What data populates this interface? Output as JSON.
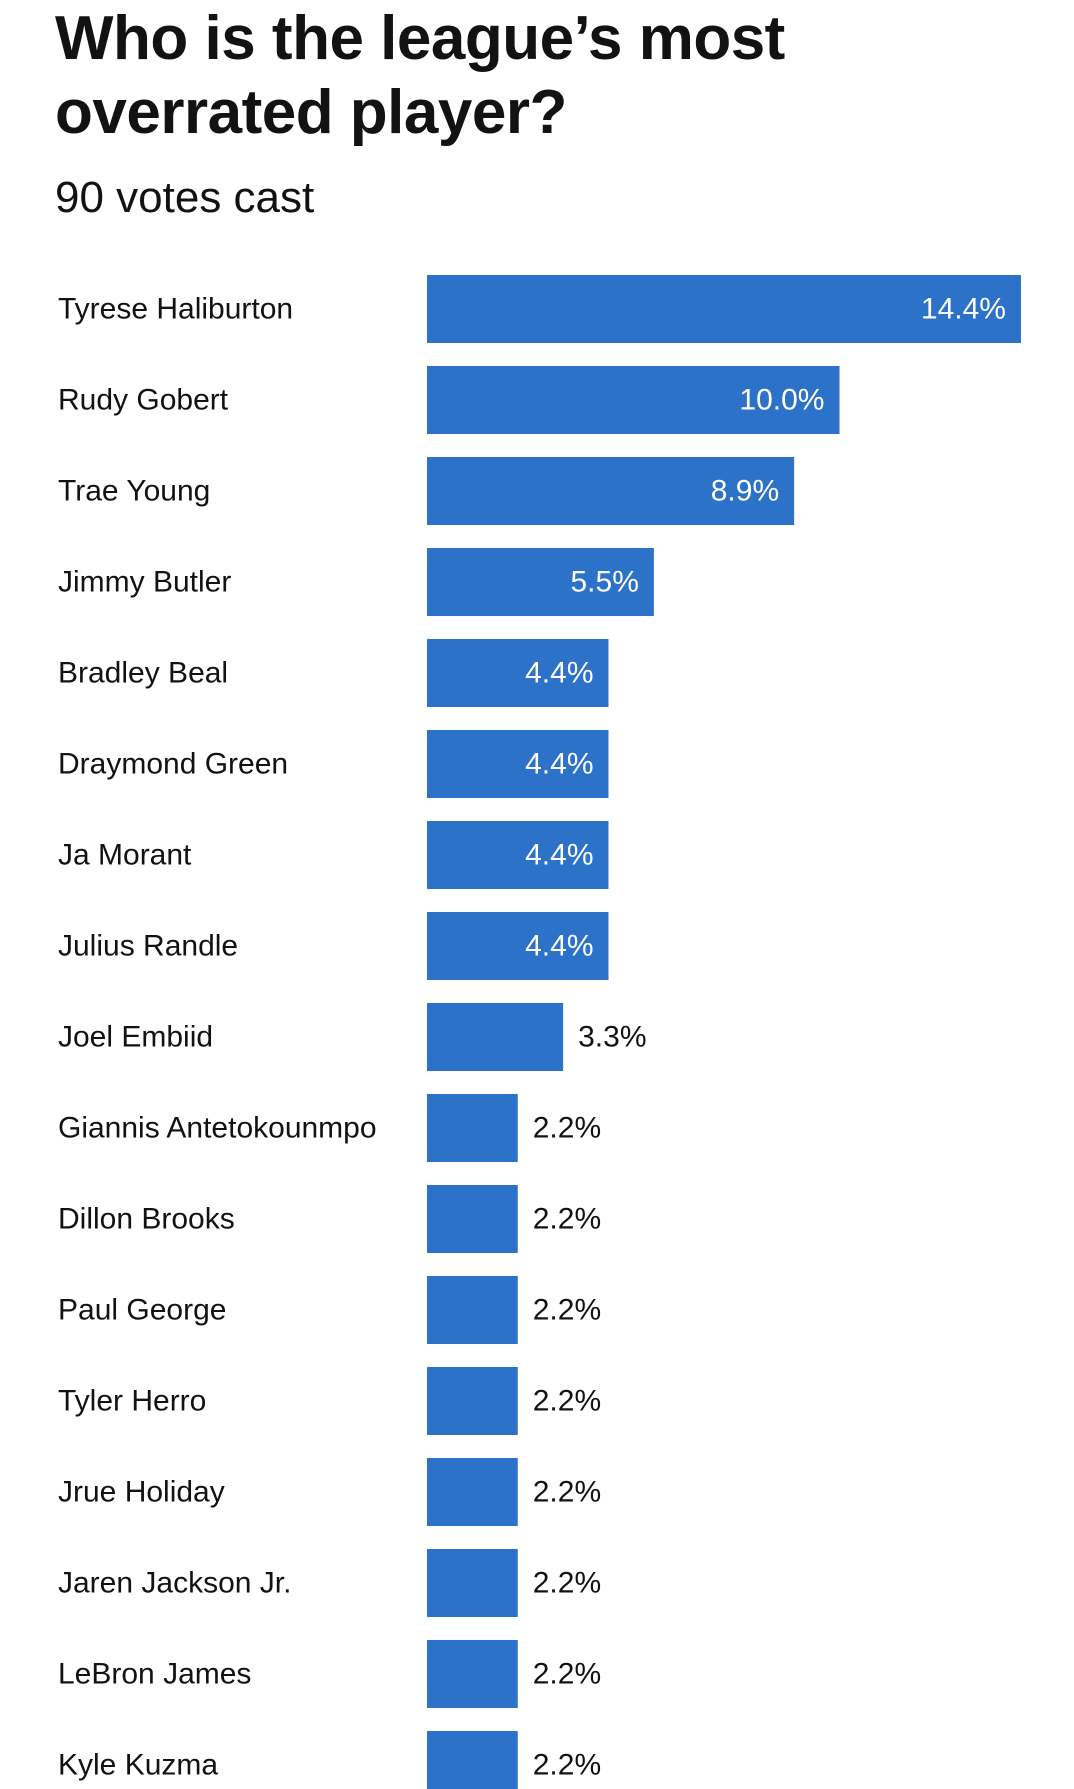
{
  "title": "Who is the league’s most overrated player?",
  "subtitle": "90 votes cast",
  "colors": {
    "bar": "#2c72c8",
    "label_inside": "#ffffff",
    "label_outside": "#121212"
  },
  "chart_data": {
    "type": "bar",
    "orientation": "horizontal",
    "title": "Who is the league’s most overrated player?",
    "subtitle": "90 votes cast",
    "xlabel": "",
    "ylabel": "",
    "xlim": [
      0,
      14.4
    ],
    "grid": false,
    "categories": [
      "Tyrese Haliburton",
      "Rudy Gobert",
      "Trae Young",
      "Jimmy Butler",
      "Bradley Beal",
      "Draymond Green",
      "Ja Morant",
      "Julius Randle",
      "Joel Embiid",
      "Giannis Antetokounmpo",
      "Dillon Brooks",
      "Paul George",
      "Tyler Herro",
      "Jrue Holiday",
      "Jaren Jackson Jr.",
      "LeBron James",
      "Kyle Kuzma"
    ],
    "values": [
      14.4,
      10.0,
      8.9,
      5.5,
      4.4,
      4.4,
      4.4,
      4.4,
      3.3,
      2.2,
      2.2,
      2.2,
      2.2,
      2.2,
      2.2,
      2.2,
      2.2
    ],
    "value_labels": [
      "14.4%",
      "10.0%",
      "8.9%",
      "5.5%",
      "4.4%",
      "4.4%",
      "4.4%",
      "4.4%",
      "3.3%",
      "2.2%",
      "2.2%",
      "2.2%",
      "2.2%",
      "2.2%",
      "2.2%",
      "2.2%",
      "2.2%"
    ]
  }
}
